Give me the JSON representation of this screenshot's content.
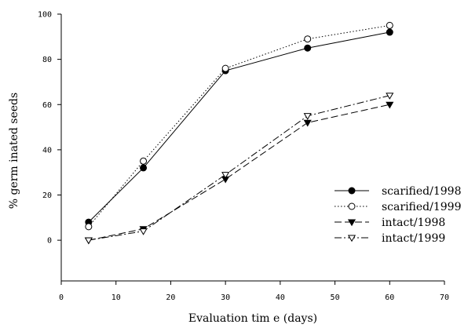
{
  "chart_data": {
    "type": "line",
    "title": "",
    "xlabel": "Evaluation tim e (days)",
    "ylabel": "% germ inated seeds",
    "xlim": [
      0,
      70
    ],
    "ylim": [
      -18,
      100
    ],
    "xticks": [
      "0",
      "10",
      "20",
      "30",
      "40",
      "50",
      "60",
      "70"
    ],
    "yticks": [
      "0",
      "20",
      "40",
      "60",
      "80",
      "100"
    ],
    "grid": false,
    "legend": "right",
    "series": [
      {
        "name": "scarified/1998",
        "marker": "filled-circle",
        "dash": "solid",
        "x": [
          5,
          15,
          30,
          45,
          60
        ],
        "y": [
          8,
          32,
          75,
          85,
          92
        ]
      },
      {
        "name": "scarified/1999",
        "marker": "open-circle",
        "dash": "dotted",
        "x": [
          5,
          15,
          30,
          45,
          60
        ],
        "y": [
          6,
          35,
          76,
          89,
          95
        ]
      },
      {
        "name": "intact/1998",
        "marker": "filled-triangle-down",
        "dash": "dashed",
        "x": [
          5,
          15,
          30,
          45,
          60
        ],
        "y": [
          0,
          5,
          27,
          52,
          60
        ]
      },
      {
        "name": "intact/1999",
        "marker": "open-triangle-down",
        "dash": "dashdot",
        "x": [
          5,
          15,
          30,
          45,
          60
        ],
        "y": [
          0,
          4,
          29,
          55,
          64
        ]
      }
    ]
  }
}
